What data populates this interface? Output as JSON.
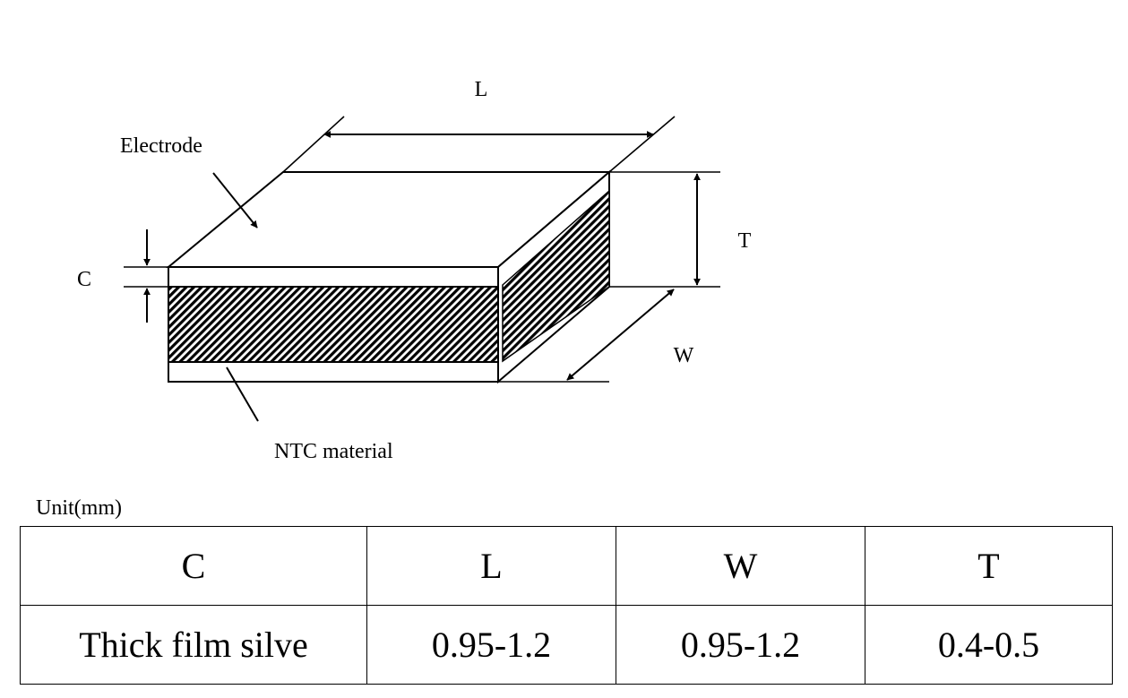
{
  "diagram": {
    "labels": {
      "length": "L",
      "thickness": "T",
      "width": "W",
      "electrode_thickness": "C",
      "electrode": "Electrode",
      "ntc_material": "NTC material"
    }
  },
  "unit_label": "Unit(mm)",
  "table": {
    "headers": [
      "C",
      "L",
      "W",
      "T"
    ],
    "rows": [
      [
        "Thick film silve",
        "0.95-1.2",
        "0.95-1.2",
        "0.4-0.5"
      ]
    ]
  }
}
